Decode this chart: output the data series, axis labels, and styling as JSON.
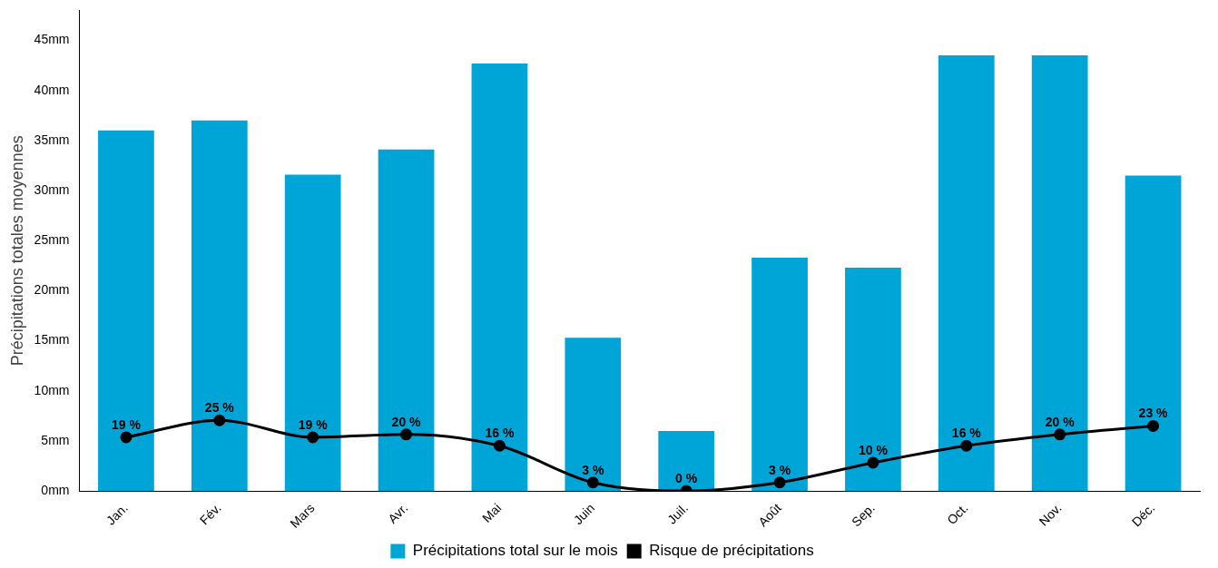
{
  "chart_data": {
    "type": "bar",
    "ylabel": "Précipitations totales moyennes",
    "categories": [
      "Jan.",
      "Fév.",
      "Mars",
      "Avr.",
      "Mai",
      "Juin",
      "Juil.",
      "Août",
      "Sep.",
      "Oct.",
      "Nov.",
      "Déc."
    ],
    "series": [
      {
        "name": "Précipitations total sur le mois",
        "color": "#00a5d8",
        "values": [
          36,
          37,
          31.6,
          34.1,
          42.7,
          15.3,
          6,
          23.3,
          22.3,
          43.5,
          43.5,
          31.5
        ]
      },
      {
        "name": "Risque de précipitations",
        "type": "line",
        "axis": "y2",
        "color": "#000000",
        "values": [
          19,
          25,
          19,
          20,
          16,
          3,
          0,
          3,
          10,
          16,
          20,
          23
        ],
        "value_labels": [
          "19 %",
          "25 %",
          "19 %",
          "20 %",
          "16 %",
          "3 %",
          "0 %",
          "3 %",
          "10 %",
          "16 %",
          "20 %",
          "23 %"
        ]
      }
    ],
    "ylim": [
      0,
      48
    ],
    "yticks": [
      {
        "value": 0,
        "label": "0mm"
      },
      {
        "value": 5,
        "label": "5mm"
      },
      {
        "value": 10,
        "label": "10mm"
      },
      {
        "value": 15,
        "label": "15mm"
      },
      {
        "value": 20,
        "label": "20mm"
      },
      {
        "value": 25,
        "label": "25mm"
      },
      {
        "value": 30,
        "label": "30mm"
      },
      {
        "value": 35,
        "label": "35mm"
      },
      {
        "value": 40,
        "label": "40mm"
      },
      {
        "value": 45,
        "label": "45mm"
      }
    ],
    "y2lim": [
      0,
      170
    ],
    "grid": false,
    "legend": "bottom",
    "marker": "circle",
    "line_style": "solid"
  }
}
